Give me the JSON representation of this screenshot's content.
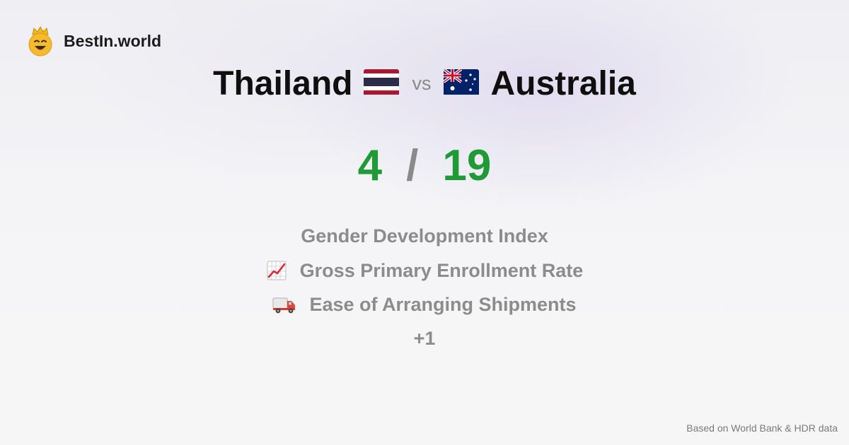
{
  "brand": {
    "name": "BestIn.world",
    "icon": "crown-smiley-icon"
  },
  "comparison": {
    "country_a": "Thailand",
    "country_b": "Australia",
    "vs_label": "vs",
    "score_a": "4",
    "score_separator": "/",
    "score_b": "19"
  },
  "metrics": [
    {
      "label": "Gender Development Index",
      "icon": ""
    },
    {
      "label": "Gross Primary Enrollment Rate",
      "icon": "chart-increasing-icon"
    },
    {
      "label": "Ease of Arranging Shipments",
      "icon": "delivery-truck-icon"
    }
  ],
  "more_label": "+1",
  "footer": {
    "source": "Based on World Bank & HDR data"
  },
  "colors": {
    "score": "#1f9a36",
    "muted": "#8c8c8c",
    "title": "#0f0f0f"
  }
}
